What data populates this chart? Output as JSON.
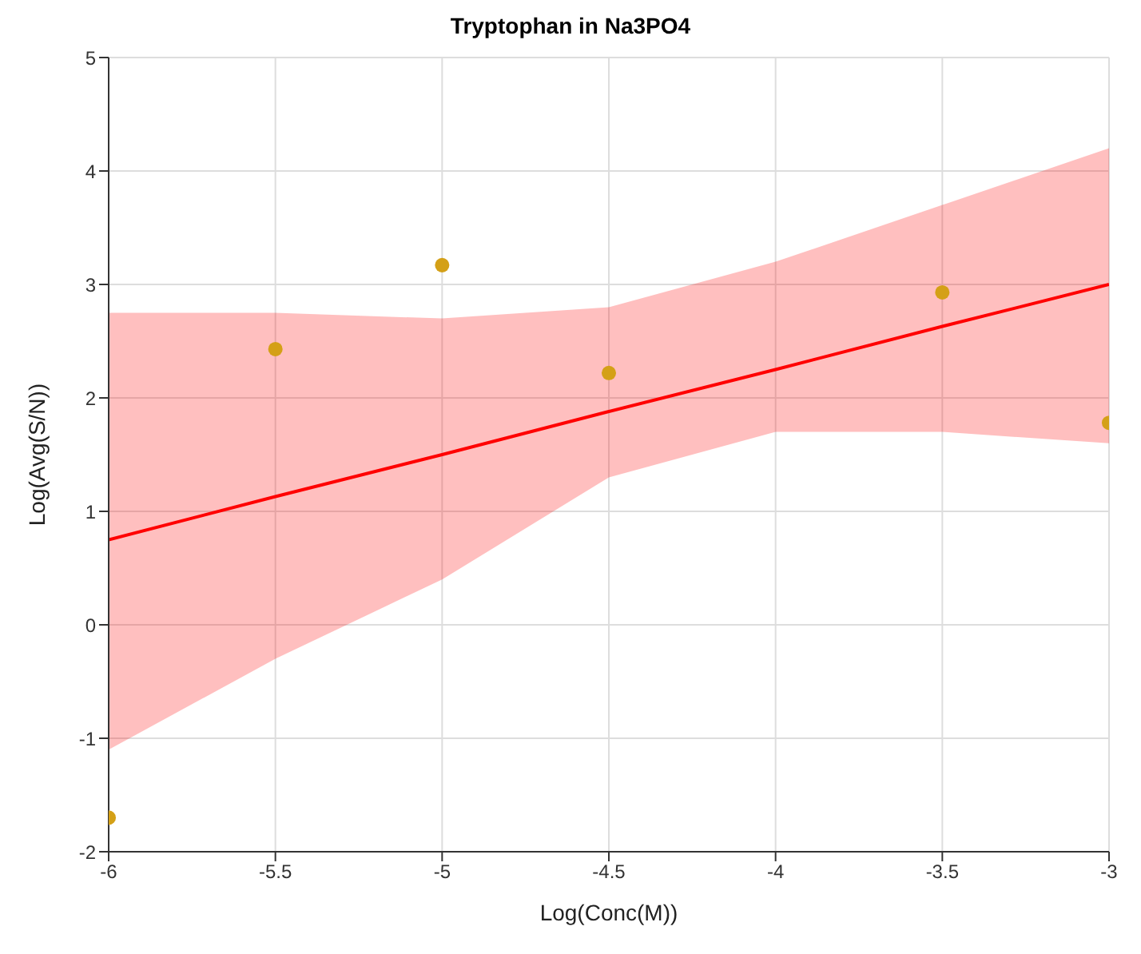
{
  "chart_data": {
    "type": "line",
    "title": "Tryptophan in Na3PO4",
    "xlabel": "Log(Conc(M))",
    "ylabel": "Log(Avg(S/N))",
    "xlim": [
      -6,
      -3
    ],
    "xticks": [
      -6,
      -5.5,
      -5,
      -4.5,
      -4,
      -3.5,
      -3
    ],
    "ylim": [
      -2,
      5
    ],
    "yticks": [
      -2,
      -1,
      0,
      1,
      2,
      3,
      4,
      5
    ],
    "grid": true,
    "legend": false,
    "line_style": "solid",
    "series": [
      {
        "type": "line",
        "color": "#ff0000",
        "marker": "none",
        "x": [
          -6,
          -5.5,
          -5,
          -4.5,
          -4,
          -3.5,
          -3
        ],
        "values": [
          0.75,
          1.13,
          1.5,
          1.88,
          2.25,
          2.63,
          3.0
        ],
        "lower": [
          -1.1,
          -0.3,
          0.4,
          1.3,
          1.7,
          1.7,
          1.6
        ],
        "upper": [
          2.75,
          2.75,
          2.7,
          2.8,
          3.2,
          3.7,
          4.2
        ]
      },
      {
        "type": "scatter",
        "color": "#d4a017",
        "marker": "circle",
        "x": [
          -6,
          -5.5,
          -5,
          -4.5,
          -3.5,
          -3
        ],
        "values": [
          -1.7,
          2.43,
          3.17,
          2.22,
          2.93,
          1.78
        ]
      }
    ]
  }
}
